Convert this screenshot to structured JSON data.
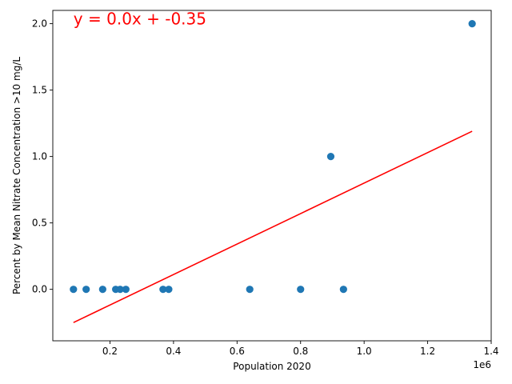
{
  "chart_data": {
    "type": "scatter",
    "title": "",
    "xlabel": "Population 2020",
    "ylabel": "Percent by Mean Nitrate Concentration >10 mg/L",
    "x_offset_label": "1e6",
    "xlim": [
      0.02,
      1.4
    ],
    "ylim": [
      -0.3875,
      2.1
    ],
    "x_ticks": [
      0.2,
      0.4,
      0.6,
      0.8,
      1.0,
      1.2,
      1.4
    ],
    "x_tick_labels": [
      "0.2",
      "0.4",
      "0.6",
      "0.8",
      "1.0",
      "1.2",
      "1.4"
    ],
    "y_ticks": [
      0.0,
      0.5,
      1.0,
      1.5,
      2.0
    ],
    "y_tick_labels": [
      "0.0",
      "0.5",
      "1.0",
      "1.5",
      "2.0"
    ],
    "grid": false,
    "series": [
      {
        "color": "#1f77b4",
        "points": [
          {
            "x": 0.085,
            "y": 0
          },
          {
            "x": 0.125,
            "y": 0
          },
          {
            "x": 0.177,
            "y": 0
          },
          {
            "x": 0.218,
            "y": 0
          },
          {
            "x": 0.232,
            "y": 0
          },
          {
            "x": 0.25,
            "y": 0
          },
          {
            "x": 0.367,
            "y": 0
          },
          {
            "x": 0.385,
            "y": 0
          },
          {
            "x": 0.64,
            "y": 0
          },
          {
            "x": 0.8,
            "y": 0
          },
          {
            "x": 0.895,
            "y": 1
          },
          {
            "x": 0.935,
            "y": 0
          },
          {
            "x": 1.34,
            "y": 2
          }
        ]
      }
    ],
    "trendline": {
      "color": "#ff0000",
      "x_start": 0.085,
      "x_end": 1.34,
      "y_start": -0.25,
      "y_end": 1.19
    },
    "annotation": {
      "text": "y = 0.0x + -0.35",
      "color": "#ff0000"
    }
  }
}
